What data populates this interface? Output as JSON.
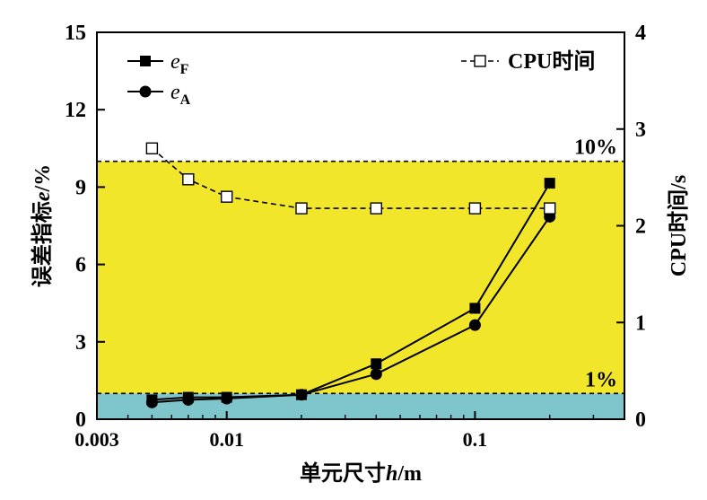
{
  "chart_data": {
    "type": "line",
    "xlabel": {
      "prefix": "单元尺寸",
      "var": "h",
      "unit": "/m"
    },
    "ylabel_left": {
      "prefix": "误差指标",
      "var": "e",
      "unit": "/%"
    },
    "ylabel_right": "CPU时间/s",
    "x_scale": "log",
    "xlim": [
      0.003,
      0.4
    ],
    "x_ticks": [
      0.003,
      0.01,
      0.1
    ],
    "x_tick_labels": [
      "0.003",
      "0.01",
      "0.1"
    ],
    "ylim_left": [
      0,
      15
    ],
    "y_ticks_left": [
      0,
      3,
      6,
      9,
      12,
      15
    ],
    "y_tick_labels_left": [
      "0",
      "3",
      "6",
      "9",
      "12",
      "15"
    ],
    "ylim_right": [
      0,
      4
    ],
    "y_ticks_right": [
      0,
      1,
      2,
      3,
      4
    ],
    "y_tick_labels_right": [
      "0",
      "1",
      "2",
      "3",
      "4"
    ],
    "bands": [
      {
        "from": 0,
        "to": 1,
        "color": "#7fc6cc"
      },
      {
        "from": 1,
        "to": 10,
        "color": "#f2e62a"
      }
    ],
    "thresholds": [
      {
        "value": 10,
        "label": "10%"
      },
      {
        "value": 1,
        "label": "1%"
      }
    ],
    "series": [
      {
        "name": "e_F",
        "name_main": "e",
        "name_sub": "F",
        "axis": "left",
        "marker": "square-filled",
        "line": "solid",
        "x": [
          0.005,
          0.007,
          0.01,
          0.02,
          0.04,
          0.1,
          0.2
        ],
        "y": [
          0.75,
          0.85,
          0.85,
          0.95,
          2.15,
          4.3,
          9.15
        ]
      },
      {
        "name": "e_A",
        "name_main": "e",
        "name_sub": "A",
        "axis": "left",
        "marker": "circle-filled",
        "line": "solid",
        "x": [
          0.005,
          0.007,
          0.01,
          0.02,
          0.04,
          0.1,
          0.2
        ],
        "y": [
          0.65,
          0.75,
          0.8,
          0.95,
          1.75,
          3.65,
          7.85
        ]
      },
      {
        "name": "CPU时间",
        "axis": "right",
        "marker": "square-open",
        "line": "dashed",
        "x": [
          0.005,
          0.007,
          0.01,
          0.02,
          0.04,
          0.1,
          0.2
        ],
        "y": [
          2.8,
          2.48,
          2.3,
          2.18,
          2.18,
          2.18,
          2.18
        ]
      }
    ]
  }
}
